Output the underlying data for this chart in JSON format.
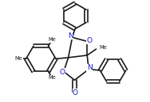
{
  "bg_color": "#ffffff",
  "line_color": "#1a1a1a",
  "atom_label_color": "#1414c8",
  "bond_width": 1.2,
  "figsize": [
    1.88,
    1.29
  ],
  "dpi": 100,
  "xlim": [
    -1.5,
    1.6
  ],
  "ylim": [
    -1.05,
    1.55
  ]
}
